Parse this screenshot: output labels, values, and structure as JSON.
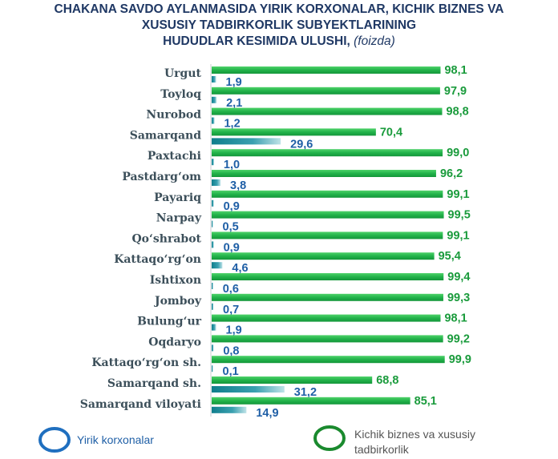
{
  "title_lines": [
    "CHAKANA SAVDO AYLANMASIDA YIRIK KORXONALAR, KICHIK BIZNES VA",
    "XUSUSIY TADBIRKORLIK SUBYEKTLARINING"
  ],
  "title_line3": "HUDUDLAR KESIMIDA ULUSHI,",
  "title_unit": "(foizda)",
  "chart_data": {
    "type": "bar",
    "orientation": "horizontal",
    "categories": [
      "Urgut",
      "Toyloq",
      "Nurobod",
      "Samarqand",
      "Paxtachi",
      "Pastdarg‘om",
      "Payariq",
      "Narpay",
      "Qo‘shrabot",
      "Kattaqo‘rg‘on",
      "Ishtixon",
      "Jomboy",
      "Bulung‘ur",
      "Oqdaryo",
      "Kattaqo‘rg‘on sh.",
      "Samarqand sh.",
      "Samarqand viloyati"
    ],
    "series": [
      {
        "name": "Kichik biznes va xususiy tadbirkorlik",
        "color": "#1fb14a",
        "values": [
          98.1,
          97.9,
          98.8,
          70.4,
          99.0,
          96.2,
          99.1,
          99.5,
          99.1,
          95.4,
          99.4,
          99.3,
          98.1,
          99.2,
          99.9,
          68.8,
          85.1
        ],
        "labels": [
          "98,1",
          "97,9",
          "98,8",
          "70,4",
          "99,0",
          "96,2",
          "99,1",
          "99,5",
          "99,1",
          "95,4",
          "99,4",
          "99,3",
          "98,1",
          "99,2",
          "99,9",
          "68,8",
          "85,1"
        ]
      },
      {
        "name": "Yirik korxonalar",
        "color": "#1a8a9a",
        "values": [
          1.9,
          2.1,
          1.2,
          29.6,
          1.0,
          3.8,
          0.9,
          0.5,
          0.9,
          4.6,
          0.6,
          0.7,
          1.9,
          0.8,
          0.1,
          31.2,
          14.9
        ],
        "labels": [
          "1,9",
          "2,1",
          "1,2",
          "29,6",
          "1,0",
          "3,8",
          "0,9",
          "0,5",
          "0,9",
          "4,6",
          "0,6",
          "0,7",
          "1,9",
          "0,8",
          "0,1",
          "31,2",
          "14,9"
        ]
      }
    ],
    "xlim": [
      0,
      100
    ],
    "grid": false
  },
  "legend": {
    "items": [
      {
        "label": "Yirik korxonalar",
        "color": "#1f6fbf"
      },
      {
        "label_lines": [
          "Kichik biznes va xususiy",
          "tadbirkorlik"
        ],
        "color": "#1a8a2e"
      }
    ]
  }
}
